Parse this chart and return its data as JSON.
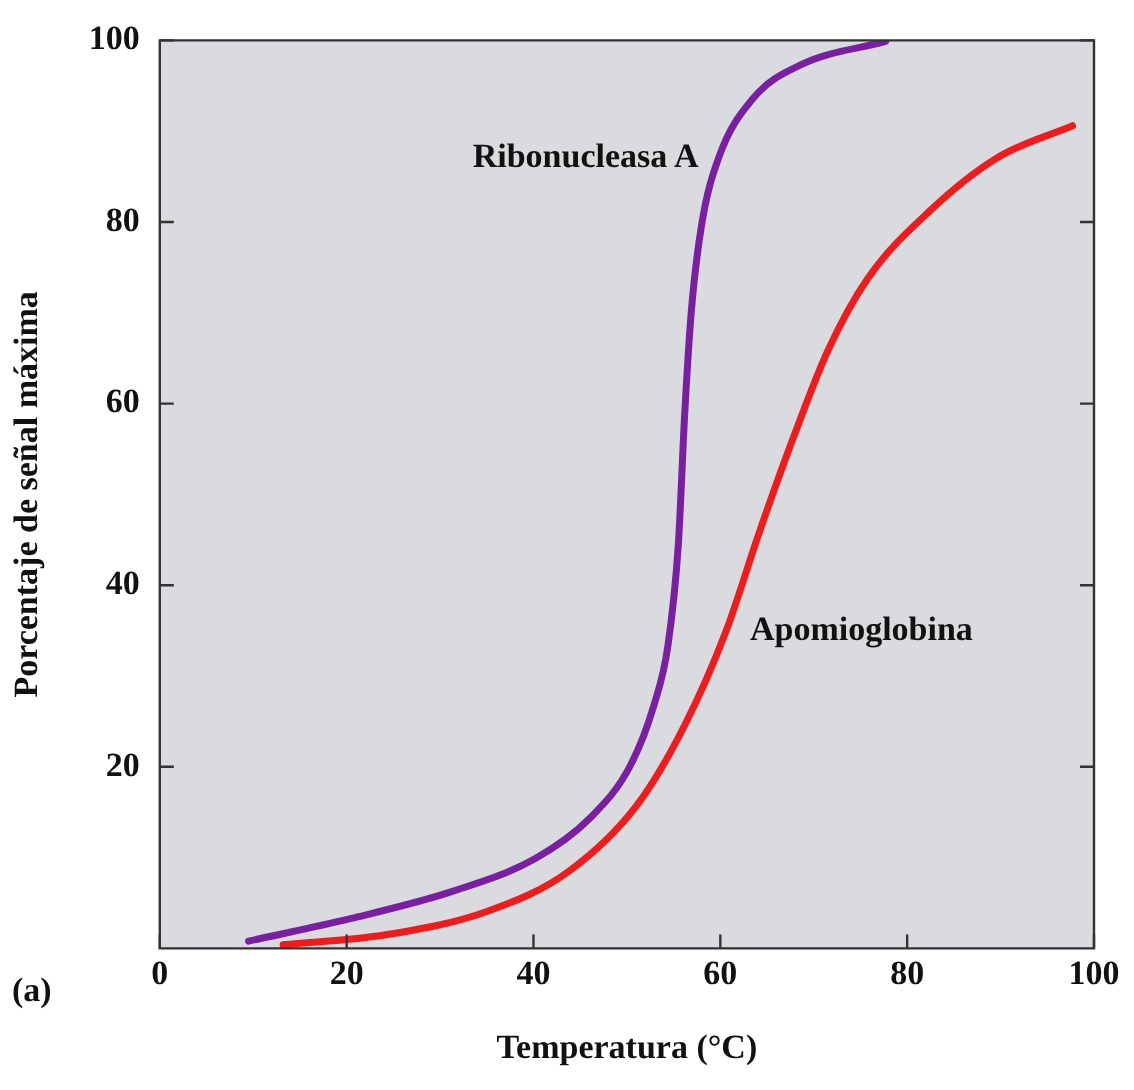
{
  "chart_data": {
    "type": "line",
    "xlabel": "Temperatura (°C)",
    "ylabel": "Porcentaje de señal máxima",
    "xlim": [
      0,
      100
    ],
    "xticks": [
      0,
      20,
      40,
      60,
      80,
      100
    ],
    "ylim": [
      0,
      100
    ],
    "yticks": [
      20,
      40,
      60,
      80,
      100
    ],
    "grid": false,
    "legend": false,
    "marker": "none",
    "line_style": "solid",
    "annotations": [
      "(a)"
    ],
    "series": [
      {
        "name": "Ribonucleasa A",
        "color": "#7b1fa2",
        "x": [
          9.5,
          20.5,
          31.4,
          40.2,
          46,
          50.4,
          52.9,
          54.4,
          55.5,
          56.2,
          56.9,
          58,
          59.8,
          63.5,
          68.6,
          77.7
        ],
        "values": [
          0.8,
          3.3,
          6.3,
          9.9,
          14.3,
          20.2,
          26.8,
          33.4,
          44.4,
          59.1,
          70.2,
          79.7,
          87,
          93.6,
          97.3,
          99.9
        ]
      },
      {
        "name": "Apomioglobina",
        "color": "#ee1c1c",
        "x": [
          13.2,
          24.2,
          35.1,
          43.8,
          51.1,
          56.2,
          60.6,
          64.2,
          67.8,
          71.5,
          75.8,
          82.4,
          89.7,
          97.7
        ],
        "values": [
          0.4,
          1.5,
          4.1,
          8.5,
          15.8,
          24.6,
          34.9,
          45.9,
          56.2,
          65.8,
          73.8,
          81.2,
          87.1,
          90.6
        ]
      }
    ]
  }
}
